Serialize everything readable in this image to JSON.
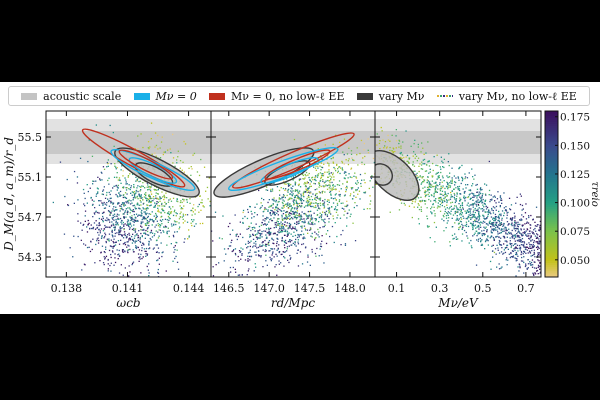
{
  "legend": [
    {
      "label": "acoustic scale",
      "color": "#c4c4c4",
      "kind": "box"
    },
    {
      "label": "Mν = 0",
      "color": "#1ab0e8",
      "kind": "box"
    },
    {
      "label": "Mν = 0, no low-ℓ EE",
      "color": "#c0301e",
      "kind": "box"
    },
    {
      "label": "vary Mν",
      "color": "#3a3a3a",
      "kind": "box"
    },
    {
      "label": "vary Mν, no low-ℓ EE",
      "color": "",
      "kind": "dots"
    }
  ],
  "chart_data": {
    "type": "scatter",
    "ylabel": "D_M(a_d, a_m)/r_d",
    "ylim": [
      54.1,
      55.76
    ],
    "yticks": [
      {
        "v": 55.5,
        "label": "55.5"
      },
      {
        "v": 55.1,
        "label": "55.1"
      },
      {
        "v": 54.7,
        "label": "54.7"
      },
      {
        "v": 54.3,
        "label": "54.3"
      }
    ],
    "acoustic_band": {
      "outer": [
        55.23,
        55.68
      ],
      "inner": [
        55.33,
        55.56
      ],
      "outer_color": "#e2e2e2",
      "inner_color": "#c8c8c8"
    },
    "colorbar": {
      "label": "τreio",
      "range": [
        0.035,
        0.18
      ],
      "ticks": [
        {
          "v": 0.05,
          "label": "0.050"
        },
        {
          "v": 0.075,
          "label": "0.075"
        },
        {
          "v": 0.1,
          "label": "0.100"
        },
        {
          "v": 0.125,
          "label": "0.125"
        },
        {
          "v": 0.15,
          "label": "0.150"
        },
        {
          "v": 0.175,
          "label": "0.175"
        }
      ],
      "stops": [
        [
          0.035,
          "#eccb84"
        ],
        [
          0.05,
          "#c2c21a"
        ],
        [
          0.075,
          "#7cc24a"
        ],
        [
          0.1,
          "#25a184"
        ],
        [
          0.125,
          "#23748e"
        ],
        [
          0.15,
          "#3a4a8c"
        ],
        [
          0.18,
          "#3b0f5e"
        ]
      ]
    },
    "panels": [
      {
        "xlabel": "ωcb",
        "xlim": [
          0.137,
          0.1451
        ],
        "xticks": [
          {
            "v": 0.138,
            "label": "0.138"
          },
          {
            "v": 0.141,
            "label": "0.141"
          },
          {
            "v": 0.144,
            "label": "0.144"
          }
        ],
        "scatter": {
          "n": 1400,
          "x_yellow": 0.1432,
          "x_purple": 0.1402,
          "y_yellow": 55.15,
          "y_purple": 54.45,
          "sx": 0.0011,
          "sy": 0.22,
          "slope": -0.0045
        },
        "contours": [
          {
            "name": "vary-mnu-outer",
            "a": [
              0.1404,
              55.36
            ],
            "b": [
              0.1445,
              54.93
            ],
            "w": 0.2,
            "stroke": "#3a3a3a",
            "fill": "#bdbdbd"
          },
          {
            "name": "vary-mnu-inner",
            "a": [
              0.1414,
              55.22
            ],
            "b": [
              0.1432,
              55.03
            ],
            "w": 0.09,
            "stroke": "#3a3a3a",
            "fill": "none"
          },
          {
            "name": "red-outer",
            "a": [
              0.1388,
              55.57
            ],
            "b": [
              0.1438,
              55.01
            ],
            "w": 0.1,
            "stroke": "#c0301e",
            "fill": "none"
          },
          {
            "name": "blue-outer",
            "a": [
              0.1402,
              55.36
            ],
            "b": [
              0.1443,
              54.98
            ],
            "w": 0.1,
            "stroke": "#1ab0e8",
            "fill": "none"
          },
          {
            "name": "blue-inner",
            "a": [
              0.1411,
              55.28
            ],
            "b": [
              0.1434,
              55.05
            ],
            "w": 0.06,
            "stroke": "#1ab0e8",
            "fill": "none"
          },
          {
            "name": "red-inner",
            "a": [
              0.1406,
              55.36
            ],
            "b": [
              0.1432,
              55.09
            ],
            "w": 0.05,
            "stroke": "#c0301e",
            "fill": "none"
          }
        ]
      },
      {
        "xlabel": "rd/Mpc",
        "xlim": [
          146.28,
          148.31
        ],
        "xticks": [
          {
            "v": 146.5,
            "label": "146.5"
          },
          {
            "v": 147.0,
            "label": "147.0"
          },
          {
            "v": 147.5,
            "label": "147.5"
          },
          {
            "v": 148.0,
            "label": "148.0"
          }
        ],
        "scatter": {
          "n": 1400,
          "x_yellow": 147.75,
          "x_purple": 147.0,
          "y_yellow": 55.15,
          "y_purple": 54.45,
          "sx": 0.32,
          "sy": 0.22,
          "slope": 1.6
        },
        "contours": [
          {
            "name": "vary-mnu-outer",
            "a": [
              146.32,
              54.93
            ],
            "b": [
              147.55,
              55.36
            ],
            "w": 0.2,
            "stroke": "#3a3a3a",
            "fill": "#bdbdbd"
          },
          {
            "name": "vary-mnu-inner",
            "a": [
              146.95,
              55.04
            ],
            "b": [
              147.5,
              55.24
            ],
            "w": 0.09,
            "stroke": "#3a3a3a",
            "fill": "none"
          },
          {
            "name": "red-outer",
            "a": [
              146.55,
              55.0
            ],
            "b": [
              148.05,
              55.53
            ],
            "w": 0.1,
            "stroke": "#c0301e",
            "fill": "none"
          },
          {
            "name": "blue-outer",
            "a": [
              146.5,
              54.98
            ],
            "b": [
              147.85,
              55.38
            ],
            "w": 0.1,
            "stroke": "#1ab0e8",
            "fill": "none"
          },
          {
            "name": "blue-inner",
            "a": [
              146.9,
              55.05
            ],
            "b": [
              147.6,
              55.28
            ],
            "w": 0.06,
            "stroke": "#1ab0e8",
            "fill": "none"
          },
          {
            "name": "red-inner",
            "a": [
              146.95,
              55.09
            ],
            "b": [
              147.75,
              55.36
            ],
            "w": 0.05,
            "stroke": "#c0301e",
            "fill": "none"
          }
        ]
      },
      {
        "xlabel": "Mν/eV",
        "xlim": [
          0.0,
          0.77
        ],
        "xticks": [
          {
            "v": 0.1,
            "label": "0.1"
          },
          {
            "v": 0.3,
            "label": "0.3"
          },
          {
            "v": 0.5,
            "label": "0.5"
          },
          {
            "v": 0.7,
            "label": "0.7"
          }
        ],
        "scatter": {
          "n": 1600,
          "mnu_max": 0.78,
          "y0": 55.35,
          "dydm": -1.35,
          "sy": 0.17
        },
        "contours": [
          {
            "name": "vary-mnu-outer",
            "a": [
              -0.02,
              55.33
            ],
            "b": [
              0.19,
              54.9
            ],
            "w": 0.28,
            "stroke": "#3a3a3a",
            "fill": "#bdbdbd"
          },
          {
            "name": "vary-mnu-inner",
            "a": [
              -0.01,
              55.2
            ],
            "b": [
              0.07,
              55.05
            ],
            "w": 0.14,
            "stroke": "#3a3a3a",
            "fill": "none"
          }
        ]
      }
    ]
  }
}
